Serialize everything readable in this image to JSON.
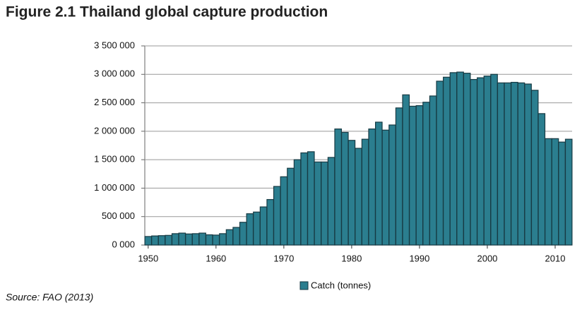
{
  "chart_data": {
    "type": "bar",
    "title": "Figure 2.1 Thailand global capture production",
    "source": "Source: FAO (2013)",
    "x": [
      1950,
      1951,
      1952,
      1953,
      1954,
      1955,
      1956,
      1957,
      1958,
      1959,
      1960,
      1961,
      1962,
      1963,
      1964,
      1965,
      1966,
      1967,
      1968,
      1969,
      1970,
      1971,
      1972,
      1973,
      1974,
      1975,
      1976,
      1977,
      1978,
      1979,
      1980,
      1981,
      1982,
      1983,
      1984,
      1985,
      1986,
      1987,
      1988,
      1989,
      1990,
      1991,
      1992,
      1993,
      1994,
      1995,
      1996,
      1997,
      1998,
      1999,
      2000,
      2001,
      2002,
      2003,
      2004,
      2005,
      2006,
      2007,
      2008,
      2009,
      2010,
      2011,
      2012
    ],
    "series": [
      {
        "name": "Catch (tonnes)",
        "color": "#2b7e8f",
        "values": [
          150000,
          160000,
          165000,
          170000,
          200000,
          210000,
          195000,
          200000,
          210000,
          180000,
          175000,
          200000,
          270000,
          310000,
          400000,
          550000,
          580000,
          670000,
          800000,
          1030000,
          1200000,
          1350000,
          1500000,
          1620000,
          1640000,
          1460000,
          1460000,
          1540000,
          2040000,
          1980000,
          1840000,
          1700000,
          1860000,
          2040000,
          2160000,
          2020000,
          2110000,
          2410000,
          2640000,
          2440000,
          2450000,
          2510000,
          2620000,
          2880000,
          2950000,
          3030000,
          3040000,
          3020000,
          2910000,
          2940000,
          2970000,
          3000000,
          2850000,
          2850000,
          2860000,
          2850000,
          2830000,
          2720000,
          2310000,
          1870000,
          1870000,
          1810000,
          1860000
        ]
      }
    ],
    "xlim": [
      1949.5,
      2012.5
    ],
    "xticks": [
      1950,
      1960,
      1970,
      1980,
      1990,
      2000,
      2010
    ],
    "ylim": [
      0,
      3500000
    ],
    "yticks": [
      {
        "value": 0,
        "label": "0 000"
      },
      {
        "value": 500000,
        "label": "500 000"
      },
      {
        "value": 1000000,
        "label": "1 000 000"
      },
      {
        "value": 1500000,
        "label": "1 500 000"
      },
      {
        "value": 2000000,
        "label": "2 000 000"
      },
      {
        "value": 2500000,
        "label": "2 500 000"
      },
      {
        "value": 3000000,
        "label": "3 000 000"
      },
      {
        "value": 3500000,
        "label": "3 500 000"
      }
    ],
    "grid": true,
    "legend": "bottom"
  }
}
